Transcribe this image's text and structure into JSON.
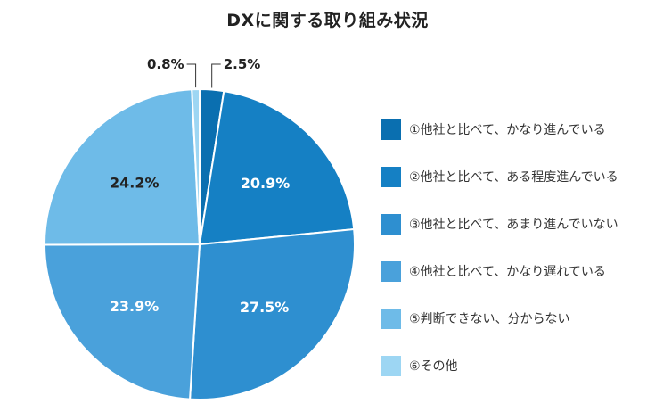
{
  "chart_data": {
    "type": "pie",
    "title": "DXに関する取り組み状況",
    "start_angle_deg": 0,
    "direction": "clockwise",
    "slices": [
      {
        "label": "①他社と比べて、かなり進んでいる",
        "value": 2.5,
        "value_label": "2.5%",
        "color": "#0a6fb0",
        "label_placement": "outside"
      },
      {
        "label": "②他社と比べて、ある程度進んでいる",
        "value": 20.9,
        "value_label": "20.9%",
        "color": "#1580c4",
        "label_placement": "inside"
      },
      {
        "label": "③他社と比べて、あまり進んでいない",
        "value": 27.5,
        "value_label": "27.5%",
        "color": "#2e8fd0",
        "label_placement": "inside"
      },
      {
        "label": "④他社と比べて、かなり遅れている",
        "value": 23.9,
        "value_label": "23.9%",
        "color": "#4aa1db",
        "label_placement": "inside"
      },
      {
        "label": "⑤判断できない、分からない",
        "value": 24.2,
        "value_label": "24.2%",
        "color": "#6ebbe8",
        "label_placement": "inside"
      },
      {
        "label": "⑥その他",
        "value": 0.8,
        "value_label": "0.8%",
        "color": "#9dd6f3",
        "label_placement": "outside"
      }
    ],
    "legend_placement": "right"
  }
}
